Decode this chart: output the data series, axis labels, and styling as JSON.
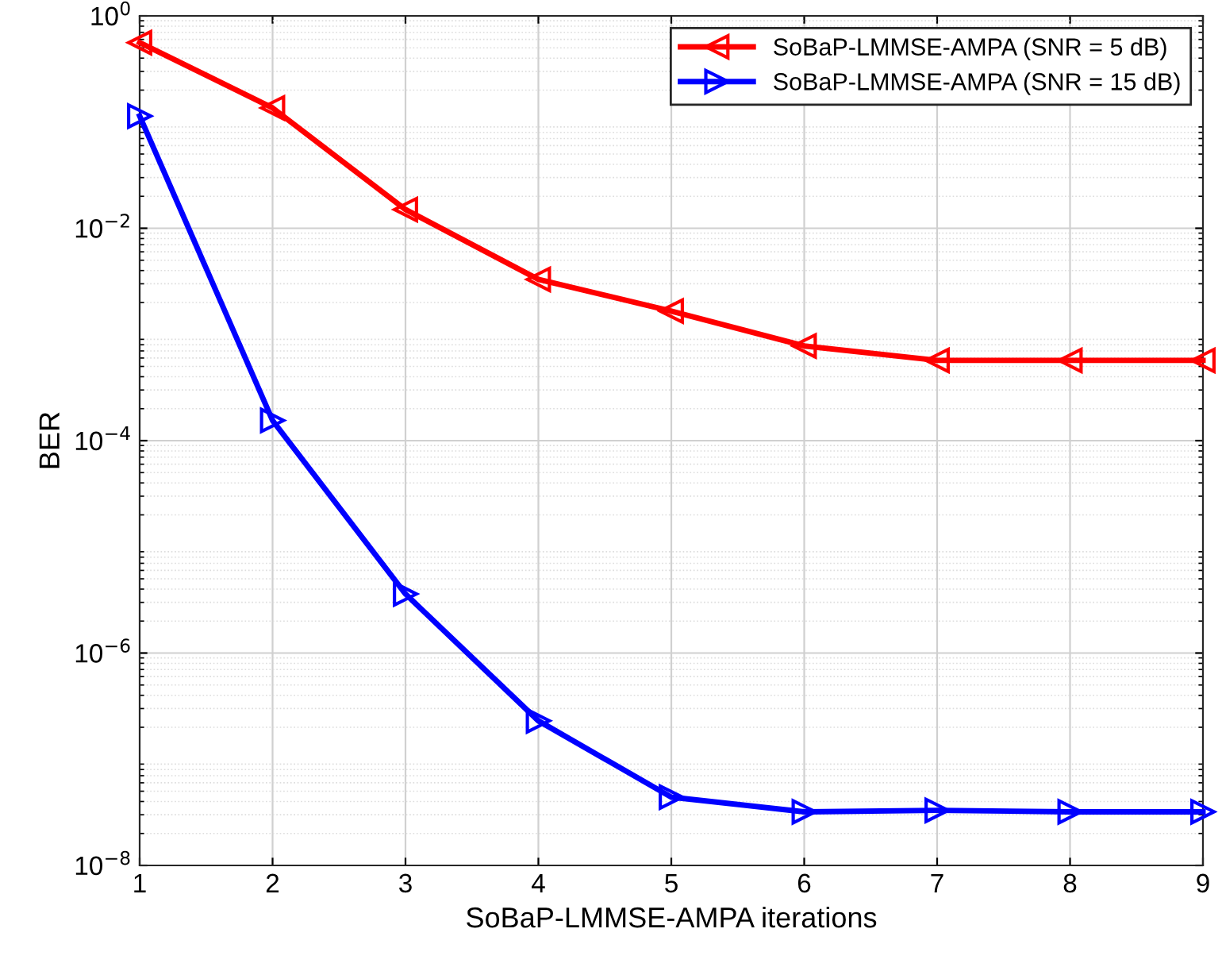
{
  "chart_data": {
    "type": "line",
    "xlabel": "SoBaP-LMMSE-AMPA iterations",
    "ylabel": "BER",
    "log": "y",
    "grid": true,
    "legend": "top right",
    "line_style": "solid",
    "x": [
      1,
      2,
      3,
      4,
      5,
      6,
      7,
      8,
      9
    ],
    "xlim": [
      1,
      9
    ],
    "xticks": [
      1,
      2,
      3,
      4,
      5,
      6,
      7,
      8,
      9
    ],
    "ylim": [
      1e-08,
      1
    ],
    "yticks": [
      {
        "value": 1e-08,
        "label": "10$^{−8}$"
      },
      {
        "value": 1e-06,
        "label": "10$^{−6}$"
      },
      {
        "value": 0.0001,
        "label": "10$^{−4}$"
      },
      {
        "value": 0.01,
        "label": "10$^{−2}$"
      },
      {
        "value": 1,
        "label": "10$^{0}$"
      }
    ],
    "series": [
      {
        "name": "SoBaP-LMMSE-AMPA (SNR = 5 dB)",
        "color": "#ff0000",
        "marker": "triangle-left",
        "values": [
          0.56,
          0.136,
          0.015,
          0.0033,
          0.00166,
          0.00078,
          0.00057,
          0.00057,
          0.00057
        ]
      },
      {
        "name": "SoBaP-LMMSE-AMPA (SNR = 15 dB)",
        "color": "#0000ff",
        "marker": "triangle-right",
        "values": [
          0.114,
          0.000155,
          3.6e-06,
          2.3e-07,
          4.4e-08,
          3.2e-08,
          3.3e-08,
          3.2e-08,
          3.2e-08
        ]
      }
    ]
  }
}
